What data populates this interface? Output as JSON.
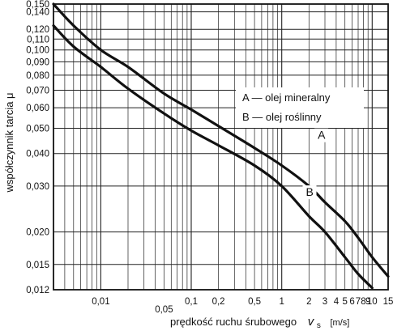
{
  "chart_data": {
    "type": "line",
    "title": "",
    "ylabel": "współczynnik tarcia μ",
    "xlabel": {
      "text": "prędkość ruchu śrubowego",
      "symbol": "v",
      "subscript": "s",
      "unit": "[m/s]"
    },
    "x_scale": "log",
    "y_scale": "log",
    "xlim": [
      0.003,
      15
    ],
    "ylim": [
      0.012,
      0.15
    ],
    "grid": true,
    "x_ticks": [
      {
        "label": "0,01",
        "value": 0.01
      },
      {
        "label": "0,05",
        "value": 0.05
      },
      {
        "label": "0,1",
        "value": 0.1
      },
      {
        "label": "0,2",
        "value": 0.2
      },
      {
        "label": "0,5",
        "value": 0.5
      },
      {
        "label": "1",
        "value": 1
      },
      {
        "label": "2",
        "value": 2
      },
      {
        "label": "3",
        "value": 3
      },
      {
        "label": "4",
        "value": 4
      },
      {
        "label": "5",
        "value": 5
      },
      {
        "label": "6",
        "value": 6
      },
      {
        "label": "7",
        "value": 7
      },
      {
        "label": "8",
        "value": 8
      },
      {
        "label": "9",
        "value": 9
      },
      {
        "label": "10",
        "value": 10
      },
      {
        "label": "15",
        "value": 15
      }
    ],
    "y_ticks": [
      {
        "label": "0,150",
        "value": 0.15
      },
      {
        "label": "0,140",
        "value": 0.14
      },
      {
        "label": "0,120",
        "value": 0.12
      },
      {
        "label": "0,110",
        "value": 0.11
      },
      {
        "label": "0,100",
        "value": 0.1
      },
      {
        "label": "0,090",
        "value": 0.09
      },
      {
        "label": "0,080",
        "value": 0.08
      },
      {
        "label": "0,070",
        "value": 0.07
      },
      {
        "label": "0,060",
        "value": 0.06
      },
      {
        "label": "0,050",
        "value": 0.05
      },
      {
        "label": "0,040",
        "value": 0.04
      },
      {
        "label": "0,030",
        "value": 0.03
      },
      {
        "label": "0,020",
        "value": 0.02
      },
      {
        "label": "0,015",
        "value": 0.015
      },
      {
        "label": "0,012",
        "value": 0.012
      }
    ],
    "legend": {
      "placement": "right",
      "entries": [
        "A — olej mineralny",
        "B — olej roślinny"
      ]
    },
    "series": [
      {
        "name": "A",
        "x": [
          0.003,
          0.005,
          0.01,
          0.02,
          0.05,
          0.1,
          0.2,
          0.5,
          1,
          2,
          3,
          5,
          7,
          10,
          15
        ],
        "y": [
          0.15,
          0.124,
          0.1,
          0.086,
          0.068,
          0.059,
          0.051,
          0.042,
          0.036,
          0.03,
          0.026,
          0.022,
          0.019,
          0.016,
          0.0135
        ]
      },
      {
        "name": "B",
        "x": [
          0.003,
          0.005,
          0.01,
          0.02,
          0.05,
          0.1,
          0.2,
          0.5,
          1,
          2,
          3,
          5,
          7,
          10
        ],
        "y": [
          0.124,
          0.103,
          0.086,
          0.071,
          0.057,
          0.049,
          0.043,
          0.036,
          0.03,
          0.023,
          0.02,
          0.016,
          0.0138,
          0.0122
        ]
      }
    ]
  }
}
